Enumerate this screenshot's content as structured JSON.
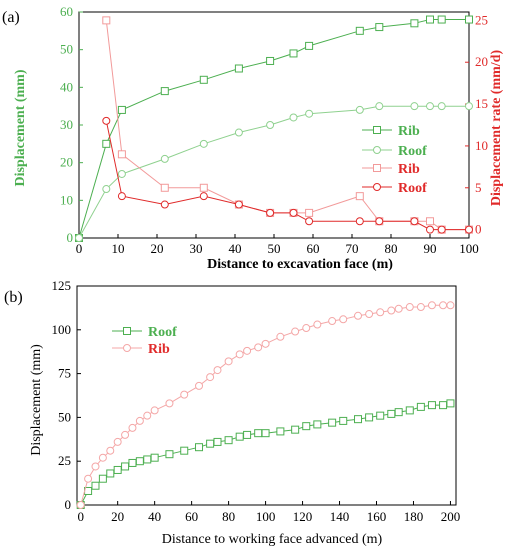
{
  "colors": {
    "green": "#4caf50",
    "light_green": "#8fd18f",
    "red": "#e02a2a",
    "light_red": "#f29a9a",
    "pink": "#f4a7a7",
    "axis": "#000000"
  },
  "chart_data": [
    {
      "type": "line",
      "panel_label": "(a)",
      "xlabel": "Distance to excavation face (m)",
      "ylabel_left": "Displacement (mm)",
      "ylabel_right": "Displacement rate (mm/d)",
      "xlim": [
        0,
        100
      ],
      "ylim_left": [
        0,
        60
      ],
      "ylim_right": [
        -1,
        26
      ],
      "x_ticks": [
        "0",
        "10",
        "20",
        "30",
        "40",
        "50",
        "60",
        "70",
        "80",
        "90",
        "100"
      ],
      "y_left_ticks": [
        "0",
        "10",
        "20",
        "30",
        "40",
        "50",
        "60"
      ],
      "y_right_ticks": [
        "0",
        "5",
        "10",
        "15",
        "20",
        "25"
      ],
      "legend_position": "center-right",
      "series": [
        {
          "name": "Rib",
          "axis": "left",
          "marker": "square",
          "color": "#4caf50",
          "x": [
            0,
            7,
            11,
            22,
            32,
            41,
            49,
            55,
            59,
            72,
            77,
            86,
            90,
            93,
            100
          ],
          "y": [
            0,
            25,
            34,
            39,
            42,
            45,
            47,
            49,
            51,
            55,
            56,
            57,
            58,
            58,
            58
          ]
        },
        {
          "name": "Roof",
          "axis": "left",
          "marker": "circle",
          "color": "#8fd18f",
          "x": [
            0,
            7,
            11,
            22,
            32,
            41,
            49,
            55,
            59,
            72,
            77,
            86,
            90,
            93,
            100
          ],
          "y": [
            0,
            13,
            17,
            21,
            25,
            28,
            30,
            32,
            33,
            34,
            35,
            35,
            35,
            35,
            35
          ]
        },
        {
          "name": "Rib",
          "axis": "right",
          "marker": "square",
          "color": "#f29a9a",
          "x": [
            7,
            11,
            22,
            32,
            41,
            49,
            55,
            59,
            72,
            77,
            86,
            90,
            93,
            100
          ],
          "y": [
            25,
            9,
            5,
            5,
            3,
            2,
            2,
            2,
            4,
            1,
            1,
            1,
            0,
            0
          ]
        },
        {
          "name": "Roof",
          "axis": "right",
          "marker": "circle",
          "color": "#e02a2a",
          "x": [
            7,
            11,
            22,
            32,
            41,
            49,
            55,
            59,
            72,
            77,
            86,
            90,
            93,
            100
          ],
          "y": [
            13,
            4,
            3,
            4,
            3,
            2,
            2,
            1,
            1,
            1,
            1,
            0,
            0,
            0
          ]
        }
      ]
    },
    {
      "type": "line",
      "panel_label": "(b)",
      "xlabel": "Distance to working face advanced (m)",
      "ylabel": "Displacement (mm)",
      "xlim": [
        -2,
        203
      ],
      "ylim": [
        0,
        125
      ],
      "x_ticks": [
        "0",
        "20",
        "40",
        "60",
        "80",
        "100",
        "120",
        "140",
        "160",
        "180",
        "200"
      ],
      "y_ticks": [
        "0",
        "25",
        "50",
        "75",
        "100",
        "125"
      ],
      "legend_position": "top-left",
      "series": [
        {
          "name": "Roof",
          "marker": "square",
          "color": "#4caf50",
          "x": [
            0,
            4,
            8,
            12,
            16,
            20,
            24,
            28,
            32,
            36,
            40,
            48,
            56,
            64,
            70,
            74,
            80,
            86,
            90,
            96,
            100,
            108,
            116,
            122,
            128,
            136,
            142,
            150,
            156,
            162,
            168,
            172,
            178,
            184,
            190,
            196,
            200
          ],
          "y": [
            0,
            8,
            11,
            15,
            18,
            20,
            22,
            24,
            25,
            26,
            27,
            29,
            31,
            33,
            35,
            36,
            37,
            39,
            40,
            41,
            41,
            42,
            43,
            45,
            46,
            47,
            48,
            49,
            50,
            51,
            52,
            53,
            54,
            56,
            57,
            57,
            58
          ]
        },
        {
          "name": "Rib",
          "marker": "circle",
          "color": "#f4a7a7",
          "x": [
            0,
            4,
            8,
            12,
            16,
            20,
            24,
            28,
            32,
            36,
            40,
            48,
            56,
            64,
            70,
            74,
            80,
            86,
            90,
            96,
            100,
            108,
            116,
            122,
            128,
            136,
            142,
            150,
            156,
            162,
            168,
            172,
            178,
            184,
            190,
            196,
            200
          ],
          "y": [
            0,
            15,
            22,
            27,
            31,
            36,
            40,
            44,
            48,
            51,
            54,
            58,
            63,
            68,
            73,
            77,
            82,
            86,
            88,
            90,
            92,
            96,
            99,
            101,
            103,
            105,
            106,
            108,
            109,
            110,
            111,
            112,
            113,
            113,
            114,
            114,
            114
          ]
        }
      ]
    }
  ]
}
